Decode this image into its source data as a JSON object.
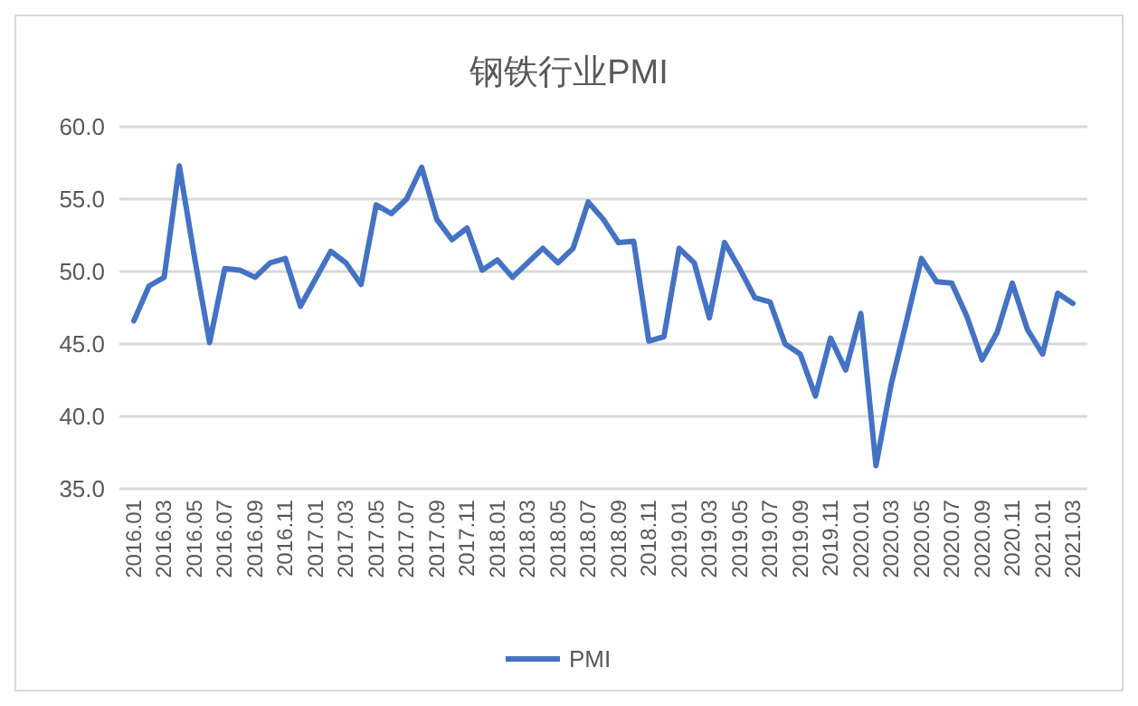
{
  "chart_data": {
    "type": "line",
    "title": "钢铁行业PMI",
    "categories": [
      "2016.01",
      null,
      "2016.03",
      null,
      "2016.05",
      null,
      "2016.07",
      null,
      "2016.09",
      null,
      "2016.11",
      null,
      "2017.01",
      null,
      "2017.03",
      null,
      "2017.05",
      null,
      "2017.07",
      null,
      "2017.09",
      null,
      "2017.11",
      null,
      "2018.01",
      null,
      "2018.03",
      null,
      "2018.05",
      null,
      "2018.07",
      null,
      "2018.09",
      null,
      "2018.11",
      null,
      "2019.01",
      null,
      "2019.03",
      null,
      "2019.05",
      null,
      "2019.07",
      null,
      "2019.09",
      null,
      "2019.11",
      null,
      "2020.01",
      null,
      "2020.03",
      null,
      "2020.05",
      null,
      "2020.07",
      null,
      "2020.09",
      null,
      "2020.11",
      null,
      "2021.01",
      null,
      "2021.03"
    ],
    "series": [
      {
        "name": "PMI",
        "color": "#4472c4",
        "values": [
          46.6,
          49.0,
          49.6,
          57.3,
          51.0,
          45.1,
          50.2,
          50.1,
          49.6,
          50.6,
          50.9,
          47.6,
          49.5,
          51.4,
          50.6,
          49.1,
          54.6,
          54.0,
          55.0,
          57.2,
          53.6,
          52.2,
          53.0,
          50.1,
          50.8,
          49.6,
          50.6,
          51.6,
          50.6,
          51.6,
          54.8,
          53.6,
          52.0,
          52.1,
          45.2,
          45.5,
          51.6,
          50.6,
          46.8,
          52.0,
          50.2,
          48.2,
          47.9,
          45.0,
          44.3,
          41.4,
          45.4,
          43.2,
          47.1,
          36.6,
          42.2,
          46.5,
          50.9,
          49.3,
          49.2,
          46.9,
          43.9,
          45.8,
          49.2,
          46.0,
          44.3,
          48.5,
          47.8
        ]
      }
    ],
    "ylim": [
      35,
      60
    ],
    "yticks": [
      {
        "value": 35,
        "label": "35.0"
      },
      {
        "value": 40,
        "label": "40.0"
      },
      {
        "value": 45,
        "label": "45.0"
      },
      {
        "value": 50,
        "label": "50.0"
      },
      {
        "value": 55,
        "label": "55.0"
      },
      {
        "value": 60,
        "label": "60.0"
      }
    ],
    "grid": "y",
    "legend": "bottom",
    "marker": "none",
    "line_style": "solid"
  }
}
